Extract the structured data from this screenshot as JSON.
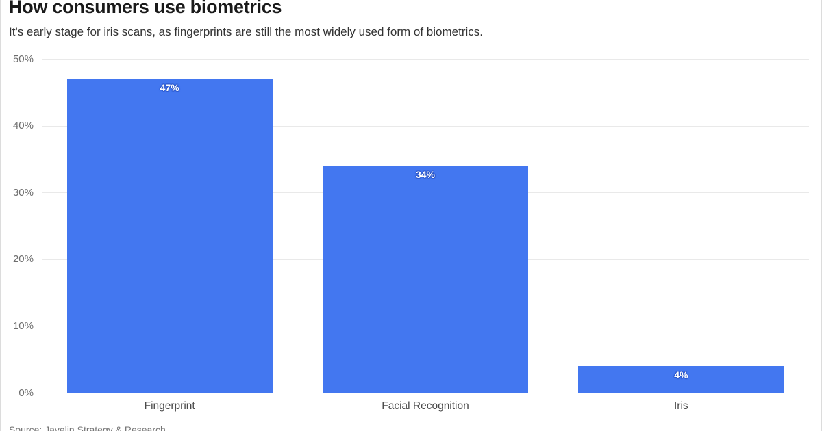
{
  "header": {
    "title": "How consumers use biometrics",
    "subtitle": "It's early stage for iris scans, as fingerprints are still the most widely used form of biometrics."
  },
  "footer": {
    "source": "Source: Javelin Strategy & Research"
  },
  "chart_data": {
    "type": "bar",
    "title": "How consumers use biometrics",
    "subtitle": "It's early stage for iris scans, as fingerprints are still the most widely used form of biometrics.",
    "categories": [
      "Fingerprint",
      "Facial Recognition",
      "Iris"
    ],
    "values": [
      47,
      34,
      4
    ],
    "value_labels": [
      "47%",
      "34%",
      "4%"
    ],
    "xlabel": "",
    "ylabel": "",
    "ylim": [
      0,
      50
    ],
    "ytick_labels": [
      "0%",
      "10%",
      "20%",
      "30%",
      "40%",
      "50%"
    ],
    "ytick_values": [
      0,
      10,
      20,
      30,
      40,
      50
    ],
    "grid": true,
    "legend": "none",
    "bar_color": "#4377f0",
    "value_label_color": "#ffffff"
  }
}
